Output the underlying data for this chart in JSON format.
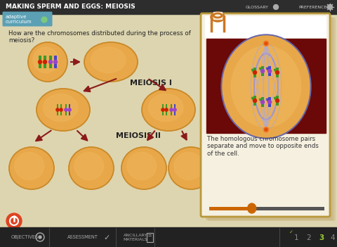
{
  "title": "MAKING SPERM AND EGGS: MEIOSIS",
  "bg_header": "#2d2d2d",
  "bg_content": "#ddd5b0",
  "cell_color": "#e8a84a",
  "cell_edge": "#c98a2a",
  "arrow_color": "#8b1a1a",
  "meiosis1_label": "MEIOSIS I",
  "meiosis2_label": "MEIOSIS II",
  "question_text": "How are the chromosomes distributed during the process of\nmeiosis?",
  "card_bg": "#f5f0e0",
  "card_border": "#c8a850",
  "dark_red_bg": "#6b0808",
  "description_text": "The homologous chromosome pairs\nseparate and move to opposite ends\nof the cell.",
  "footer_bg": "#222222",
  "nav_numbers": [
    "1",
    "2",
    "3",
    "4"
  ],
  "slider_color": "#cc6600",
  "slider_track": "#555555",
  "adaptive_bg": "#5ba0b5",
  "power_btn_color": "#dd4422",
  "chrom_green": "#3a9a2a",
  "chrom_blue": "#4444cc",
  "chrom_red_dot": "#cc2200",
  "chrom_purple_dot": "#9944cc",
  "spindle_color": "#aaaadd",
  "cell_inner_color": "#f0b860",
  "nav_active_color": "#99cc33",
  "nav_inactive_color": "#888888",
  "check_color": "#99cc33",
  "paperclip_color": "#cc7722"
}
